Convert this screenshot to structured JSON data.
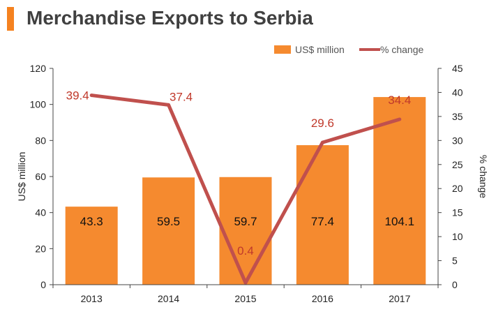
{
  "header": {
    "title": "Merchandise Exports to Serbia"
  },
  "chart_data": {
    "type": "bar",
    "categories": [
      "2013",
      "2014",
      "2015",
      "2016",
      "2017"
    ],
    "series": [
      {
        "name": "US$ million",
        "type": "bar",
        "axis": "left",
        "values": [
          43.3,
          59.5,
          59.7,
          77.4,
          104.1
        ],
        "color": "#f58a2f"
      },
      {
        "name": "% change",
        "type": "line",
        "axis": "right",
        "values": [
          39.4,
          37.4,
          0.4,
          29.6,
          34.4
        ],
        "color": "#c0504d"
      }
    ],
    "ylabel": "US$ million",
    "y2label": "% change",
    "ylim": [
      0,
      120
    ],
    "y2lim": [
      0,
      45
    ],
    "yticks": [
      0,
      20,
      40,
      60,
      80,
      100,
      120
    ],
    "y2ticks": [
      0,
      5,
      10,
      15,
      20,
      25,
      30,
      35,
      40,
      45
    ],
    "legend_position": "top-right",
    "grid": false
  }
}
